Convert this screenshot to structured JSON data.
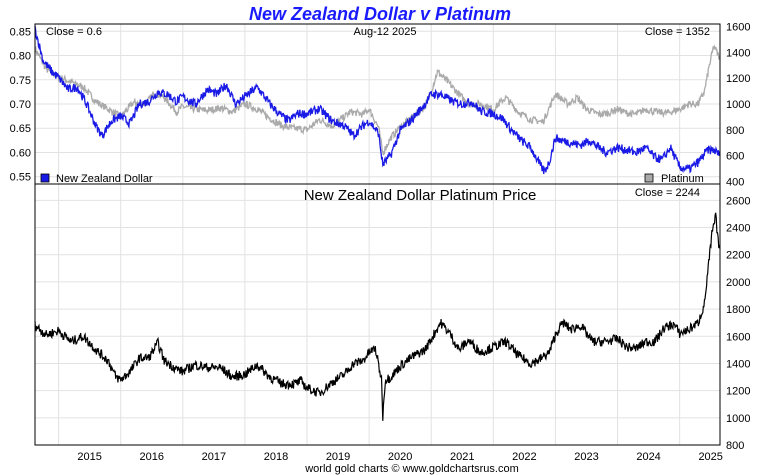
{
  "chart_data": [
    {
      "type": "line",
      "title": "New Zealand Dollar v Platinum",
      "date_label": "Aug-12  2025",
      "left_close": "Close = 0.6",
      "right_close": "Close = 1352",
      "legend_left": "New Zealand Dollar",
      "legend_right": "Platinum",
      "colors": {
        "title": "#1a1aff",
        "nzd": "#1a1ae6",
        "platinum": "#aaaaaa"
      },
      "x_ticks": [
        "2015",
        "2016",
        "2017",
        "2018",
        "2019",
        "2020",
        "2021",
        "2022",
        "2023",
        "2024",
        "2025"
      ],
      "x_range": [
        2014.62,
        2025.65
      ],
      "y_left_range": [
        0.535,
        0.865
      ],
      "y_left_ticks": [
        "0.85",
        "0.80",
        "0.75",
        "0.70",
        "0.65",
        "0.60",
        "0.55"
      ],
      "y_right_range": [
        380,
        1620
      ],
      "y_right_ticks": [
        "1600",
        "1400",
        "1200",
        "1000",
        "800",
        "600",
        "400"
      ],
      "series": [
        {
          "name": "New Zealand Dollar",
          "axis": "left",
          "x": [
            2014.62,
            2014.75,
            2014.9,
            2015.0,
            2015.15,
            2015.3,
            2015.45,
            2015.6,
            2015.7,
            2015.85,
            2016.0,
            2016.15,
            2016.3,
            2016.45,
            2016.6,
            2016.75,
            2016.9,
            2017.0,
            2017.2,
            2017.4,
            2017.55,
            2017.7,
            2017.85,
            2018.0,
            2018.2,
            2018.4,
            2018.55,
            2018.7,
            2018.85,
            2019.0,
            2019.2,
            2019.4,
            2019.6,
            2019.75,
            2019.9,
            2020.0,
            2020.15,
            2020.22,
            2020.35,
            2020.5,
            2020.7,
            2020.9,
            2021.0,
            2021.15,
            2021.35,
            2021.5,
            2021.65,
            2021.8,
            2022.0,
            2022.15,
            2022.3,
            2022.45,
            2022.6,
            2022.75,
            2022.82,
            2022.9,
            2023.0,
            2023.1,
            2023.25,
            2023.4,
            2023.55,
            2023.7,
            2023.82,
            2024.0,
            2024.15,
            2024.3,
            2024.45,
            2024.6,
            2024.72,
            2024.85,
            2025.0,
            2025.15,
            2025.3,
            2025.45,
            2025.55,
            2025.65
          ],
          "values": [
            0.855,
            0.79,
            0.765,
            0.755,
            0.73,
            0.735,
            0.7,
            0.655,
            0.635,
            0.665,
            0.675,
            0.66,
            0.7,
            0.705,
            0.725,
            0.72,
            0.705,
            0.715,
            0.7,
            0.73,
            0.72,
            0.74,
            0.7,
            0.715,
            0.735,
            0.7,
            0.68,
            0.665,
            0.68,
            0.68,
            0.69,
            0.665,
            0.655,
            0.635,
            0.655,
            0.665,
            0.64,
            0.575,
            0.595,
            0.645,
            0.67,
            0.7,
            0.72,
            0.72,
            0.705,
            0.7,
            0.705,
            0.685,
            0.68,
            0.67,
            0.645,
            0.625,
            0.61,
            0.575,
            0.56,
            0.58,
            0.63,
            0.625,
            0.62,
            0.615,
            0.625,
            0.61,
            0.6,
            0.61,
            0.605,
            0.6,
            0.61,
            0.59,
            0.585,
            0.61,
            0.57,
            0.565,
            0.58,
            0.605,
            0.605,
            0.595
          ]
        },
        {
          "name": "Platinum",
          "axis": "right",
          "x": [
            2014.62,
            2014.8,
            2015.0,
            2015.2,
            2015.4,
            2015.6,
            2015.8,
            2016.0,
            2016.2,
            2016.4,
            2016.55,
            2016.7,
            2016.9,
            2017.0,
            2017.2,
            2017.4,
            2017.6,
            2017.8,
            2018.0,
            2018.2,
            2018.4,
            2018.6,
            2018.8,
            2019.0,
            2019.2,
            2019.4,
            2019.6,
            2019.7,
            2019.9,
            2020.0,
            2020.15,
            2020.22,
            2020.35,
            2020.5,
            2020.7,
            2020.9,
            2021.0,
            2021.1,
            2021.25,
            2021.4,
            2021.6,
            2021.8,
            2022.0,
            2022.2,
            2022.4,
            2022.6,
            2022.8,
            2023.0,
            2023.2,
            2023.35,
            2023.5,
            2023.7,
            2023.85,
            2024.0,
            2024.15,
            2024.3,
            2024.45,
            2024.6,
            2024.8,
            2025.0,
            2025.15,
            2025.3,
            2025.4,
            2025.48,
            2025.55,
            2025.6,
            2025.65
          ],
          "values": [
            1430,
            1270,
            1210,
            1170,
            1130,
            1020,
            960,
            900,
            1010,
            1000,
            1090,
            1050,
            940,
            980,
            960,
            950,
            970,
            940,
            1000,
            960,
            890,
            830,
            810,
            800,
            880,
            830,
            900,
            940,
            920,
            960,
            820,
            620,
            740,
            820,
            900,
            980,
            1100,
            1250,
            1180,
            1100,
            1000,
            1000,
            960,
            1050,
            940,
            880,
            860,
            1080,
            1000,
            1050,
            960,
            920,
            930,
            960,
            930,
            920,
            960,
            940,
            930,
            960,
            1000,
            1000,
            1100,
            1300,
            1450,
            1400,
            1352
          ]
        }
      ]
    },
    {
      "type": "line",
      "title": "New Zealand Dollar Platinum Price",
      "close_label": "Close = 2244",
      "colors": {
        "line": "#000000"
      },
      "y_range": [
        800,
        2720
      ],
      "y_ticks": [
        "2600",
        "2400",
        "2200",
        "2000",
        "1800",
        "1600",
        "1400",
        "1200",
        "1000",
        "800"
      ],
      "series": [
        {
          "name": "New Zealand Dollar Platinum Price",
          "x": [
            2014.62,
            2014.8,
            2015.0,
            2015.2,
            2015.4,
            2015.6,
            2015.8,
            2015.92,
            2016.0,
            2016.15,
            2016.3,
            2016.45,
            2016.6,
            2016.7,
            2016.9,
            2017.0,
            2017.2,
            2017.4,
            2017.6,
            2017.8,
            2018.0,
            2018.2,
            2018.4,
            2018.6,
            2018.8,
            2018.9,
            2019.0,
            2019.2,
            2019.4,
            2019.6,
            2019.75,
            2019.9,
            2020.0,
            2020.1,
            2020.2,
            2020.22,
            2020.26,
            2020.35,
            2020.5,
            2020.7,
            2020.9,
            2021.0,
            2021.15,
            2021.3,
            2021.45,
            2021.6,
            2021.8,
            2022.0,
            2022.2,
            2022.4,
            2022.6,
            2022.75,
            2022.9,
            2023.0,
            2023.12,
            2023.25,
            2023.4,
            2023.6,
            2023.8,
            2024.0,
            2024.15,
            2024.3,
            2024.45,
            2024.6,
            2024.75,
            2024.9,
            2025.0,
            2025.15,
            2025.3,
            2025.4,
            2025.46,
            2025.52,
            2025.58,
            2025.62,
            2025.65
          ],
          "values": [
            1680,
            1610,
            1640,
            1560,
            1600,
            1500,
            1420,
            1300,
            1280,
            1340,
            1440,
            1440,
            1550,
            1420,
            1360,
            1340,
            1390,
            1370,
            1370,
            1300,
            1320,
            1390,
            1300,
            1250,
            1250,
            1270,
            1220,
            1180,
            1260,
            1320,
            1400,
            1420,
            1480,
            1510,
            1280,
            1010,
            1280,
            1300,
            1380,
            1450,
            1500,
            1580,
            1700,
            1620,
            1500,
            1570,
            1480,
            1520,
            1560,
            1460,
            1400,
            1430,
            1480,
            1610,
            1700,
            1650,
            1680,
            1560,
            1560,
            1580,
            1520,
            1510,
            1560,
            1560,
            1660,
            1690,
            1620,
            1650,
            1700,
            1840,
            2100,
            2350,
            2480,
            2300,
            2244
          ]
        }
      ]
    }
  ],
  "footer": "world gold charts © www.goldchartsrus.com"
}
